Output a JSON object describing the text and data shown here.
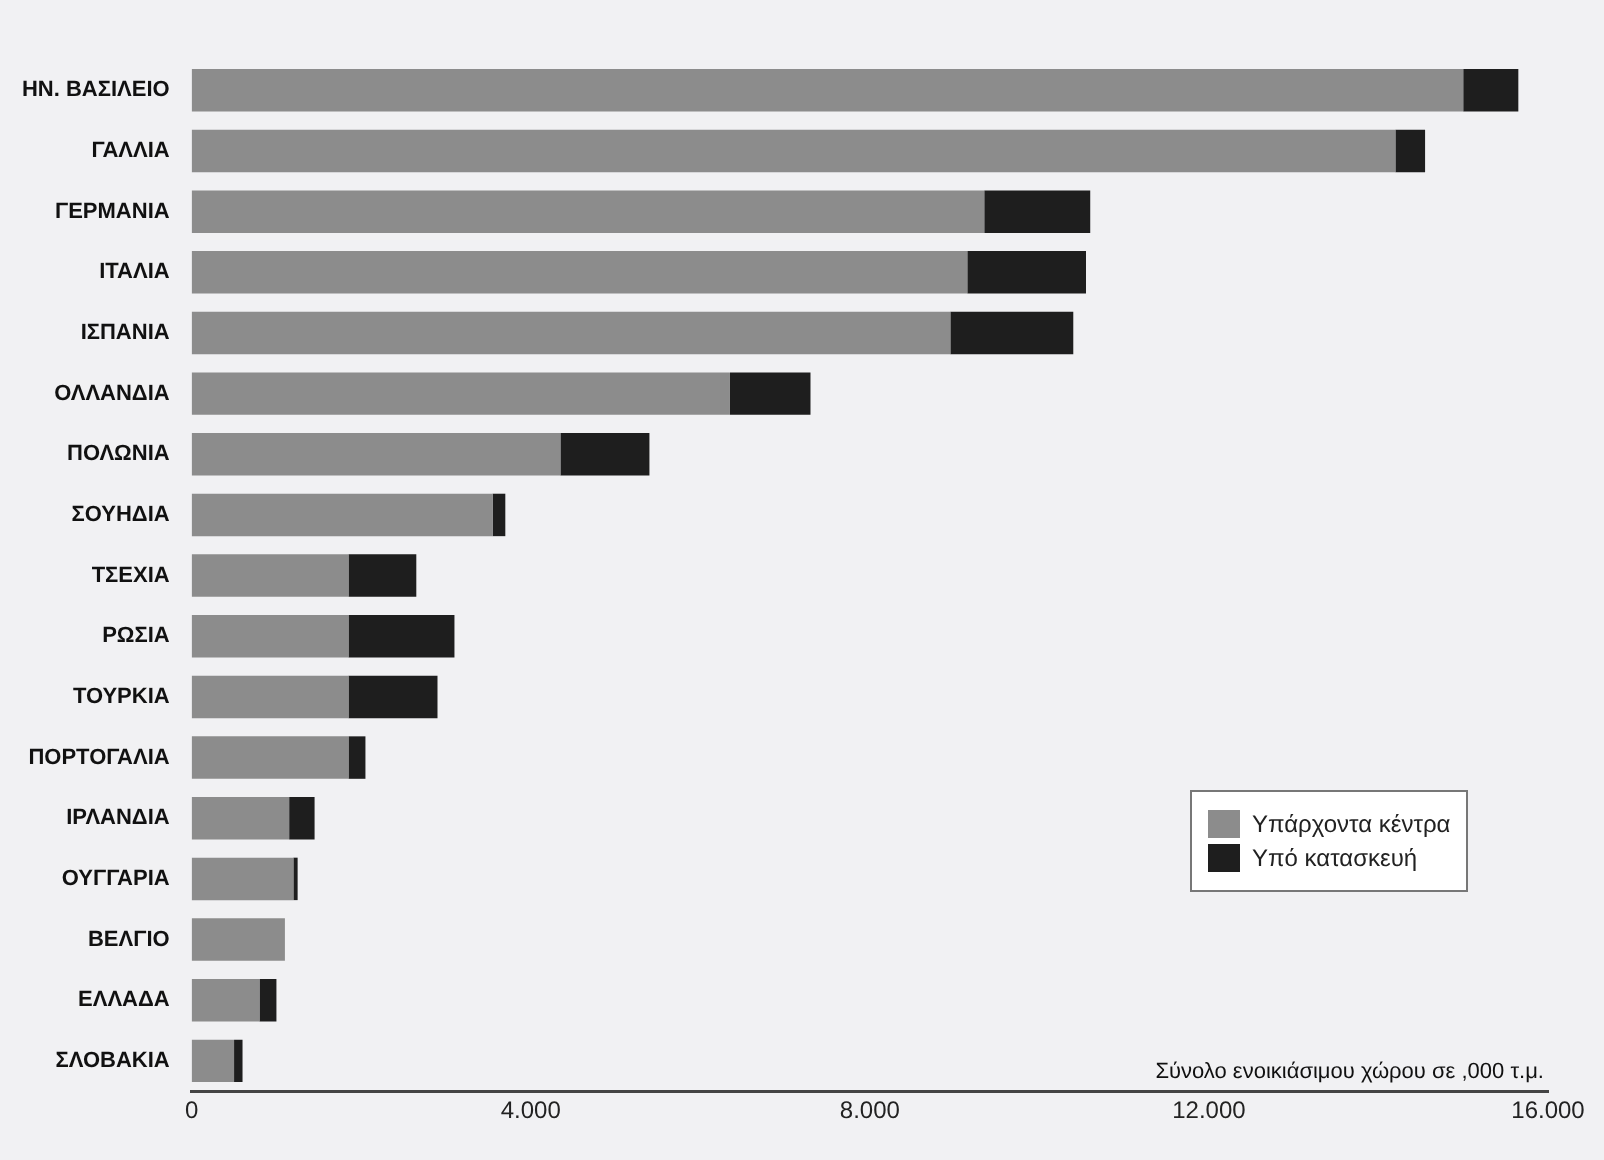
{
  "chart_data": {
    "type": "bar",
    "orientation": "horizontal",
    "stacked": true,
    "xlabel": "Σύνολο ενοικιάσιμου χώρου σε ,000 τ.μ.",
    "categories": [
      "ΗΝ. ΒΑΣΙΛΕΙΟ",
      "ΓΑΛΛΙΑ",
      "ΓΕΡΜΑΝΙΑ",
      "ΙΤΑΛΙΑ",
      "ΙΣΠΑΝΙΑ",
      "ΟΛΛΑΝΔΙΑ",
      "ΠΟΛΩΝΙΑ",
      "ΣΟΥΗΔΙΑ",
      "ΤΣΕΧΙΑ",
      "ΡΩΣΙΑ",
      "ΤΟΥΡΚΙΑ",
      "ΠΟΡΤΟΓΑΛΙΑ",
      "ΙΡΛΑΝΔΙΑ",
      "ΟΥΓΓΑΡΙΑ",
      "ΒΕΛΓΙΟ",
      "ΕΛΛΑΔΑ",
      "ΣΛΟΒΑΚΙΑ"
    ],
    "series": [
      {
        "name": "Υπάρχοντα κέντρα",
        "color": "#8c8c8c",
        "values": [
          15000,
          14200,
          9350,
          9150,
          8950,
          6350,
          4350,
          3550,
          1850,
          1850,
          1850,
          1850,
          1150,
          1200,
          1100,
          800,
          500
        ]
      },
      {
        "name": "Υπό κατασκευή",
        "color": "#1e1e1e",
        "values": [
          650,
          350,
          1250,
          1400,
          1450,
          950,
          1050,
          150,
          800,
          1250,
          1050,
          200,
          300,
          50,
          null,
          200,
          100
        ]
      }
    ],
    "xlim": [
      0,
      16000
    ],
    "xticks": [
      0,
      {
        "value": 4000,
        "label": "4.000"
      },
      {
        "value": 8000,
        "label": "8.000"
      },
      {
        "value": 12000,
        "label": "12.000"
      },
      {
        "value": 16000,
        "label": "16.000"
      }
    ],
    "legend": "bottom right"
  }
}
